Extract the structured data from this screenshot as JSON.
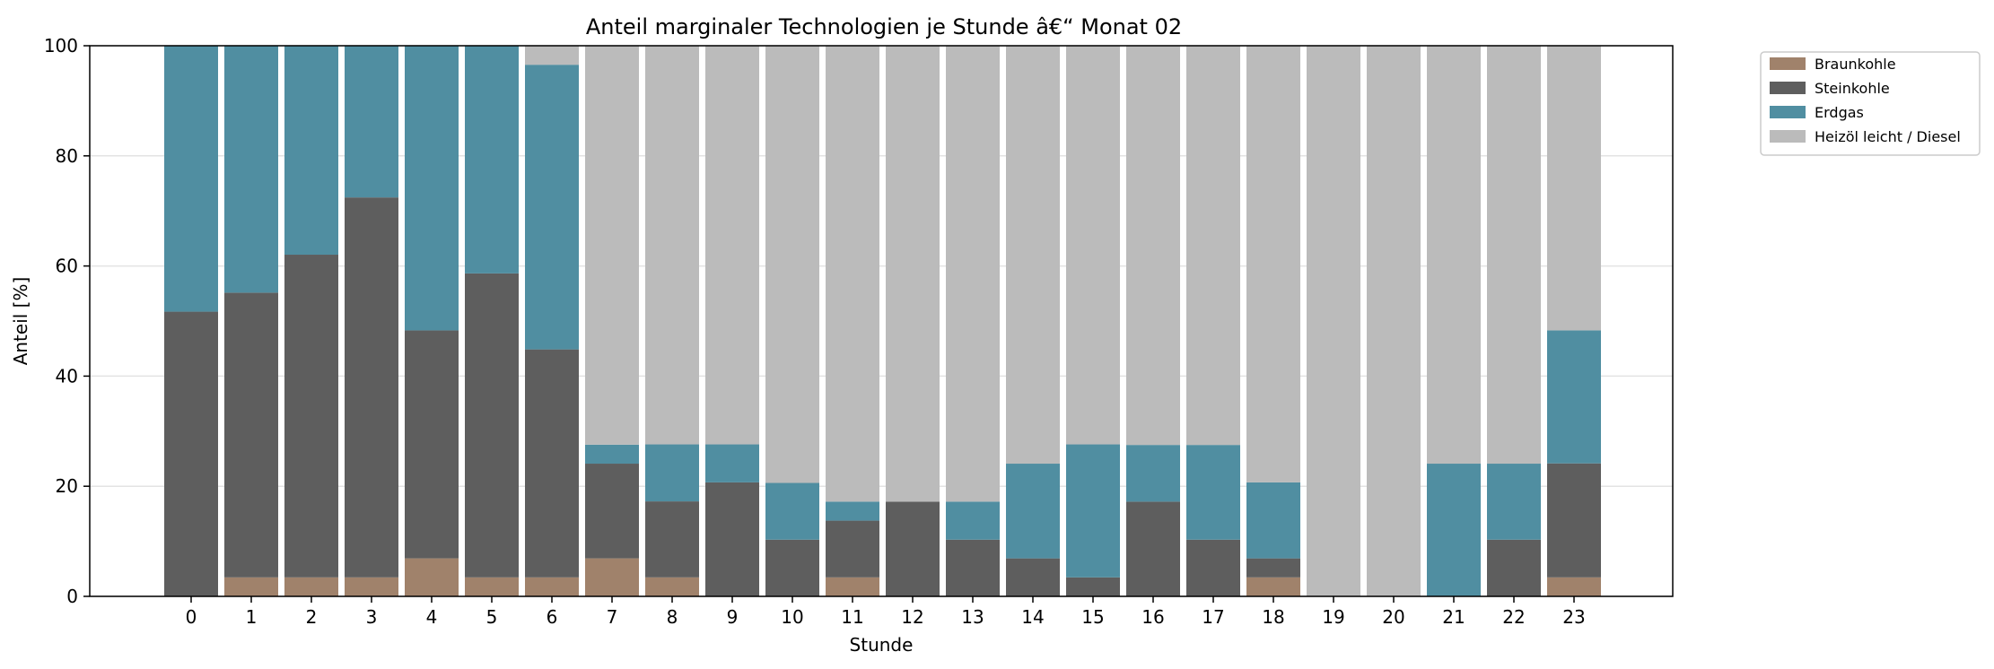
{
  "chart_data": {
    "type": "bar",
    "stacked": true,
    "title": "Anteil marginaler Technologien je Stunde â€“ Monat 02",
    "xlabel": "Stunde",
    "ylabel": "Anteil [%]",
    "ylim": [
      0,
      100
    ],
    "yticks": [
      0,
      20,
      40,
      60,
      80,
      100
    ],
    "grid": "y",
    "legend_position": "outside-top-right",
    "categories": [
      "0",
      "1",
      "2",
      "3",
      "4",
      "5",
      "6",
      "7",
      "8",
      "9",
      "10",
      "11",
      "12",
      "13",
      "14",
      "15",
      "16",
      "17",
      "18",
      "19",
      "20",
      "21",
      "22",
      "23"
    ],
    "series": [
      {
        "name": "Braunkohle",
        "color": "#a0826b",
        "values": [
          0,
          3.45,
          3.45,
          3.45,
          6.9,
          3.45,
          3.45,
          6.9,
          3.45,
          0,
          0,
          3.45,
          0,
          0,
          0,
          0,
          0,
          0,
          3.45,
          0,
          0,
          0,
          0,
          3.45
        ]
      },
      {
        "name": "Steinkohle",
        "color": "#5e5e5e",
        "values": [
          51.7,
          51.7,
          58.6,
          69.0,
          41.4,
          55.2,
          41.4,
          17.2,
          13.8,
          20.7,
          10.3,
          10.3,
          17.2,
          10.3,
          6.9,
          3.45,
          17.2,
          10.3,
          3.45,
          0,
          0,
          0,
          10.3,
          20.7
        ]
      },
      {
        "name": "Erdgas",
        "color": "#508ea1",
        "values": [
          48.3,
          44.85,
          37.95,
          27.55,
          51.7,
          41.35,
          51.7,
          3.45,
          10.35,
          6.9,
          10.3,
          3.45,
          0,
          6.9,
          17.2,
          24.15,
          10.3,
          17.2,
          13.8,
          0,
          0,
          24.1,
          13.8,
          24.15
        ]
      },
      {
        "name": "Heizöl leicht / Diesel",
        "color": "#bbbbbb",
        "values": [
          0,
          0,
          0,
          0,
          0,
          0,
          3.45,
          72.45,
          72.4,
          72.4,
          79.4,
          82.8,
          82.8,
          82.8,
          75.9,
          72.4,
          72.5,
          72.5,
          79.3,
          100,
          100,
          75.9,
          75.9,
          51.7
        ]
      }
    ]
  }
}
